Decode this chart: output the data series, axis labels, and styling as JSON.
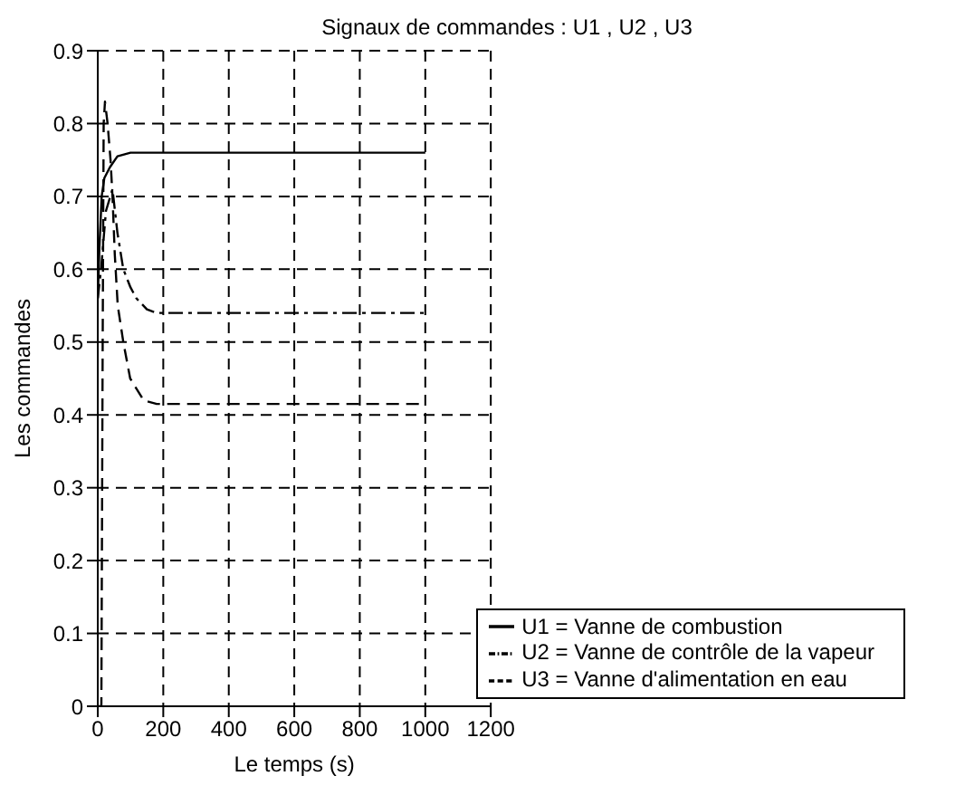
{
  "chart_data": {
    "type": "line",
    "title": "Signaux de commandes  : U1 , U2 , U3",
    "xlabel": "Le temps (s)",
    "ylabel": "Les commandes",
    "xlim": [
      0,
      1200
    ],
    "xticks": [
      0,
      200,
      400,
      600,
      800,
      1000,
      1200
    ],
    "ylim": [
      0,
      0.9
    ],
    "yticks": [
      0,
      0.1,
      0.2,
      0.3,
      0.4,
      0.5,
      0.6,
      0.7,
      0.8,
      0.9
    ],
    "grid": true,
    "legend": "bottom right",
    "series": [
      {
        "name": "U1 = Vanne  de combustion",
        "color": "#000000",
        "line_style": "solid",
        "x": [
          0,
          5,
          12,
          20,
          37,
          60,
          100,
          200,
          1000
        ],
        "values": [
          0.56,
          0.63,
          0.7,
          0.725,
          0.74,
          0.755,
          0.76,
          0.76,
          0.76
        ]
      },
      {
        "name": "U2 = Vanne de contrôle de la vapeur",
        "color": "#000000",
        "line_style": "dashdot",
        "x": [
          0,
          10,
          25,
          45,
          60,
          78,
          100,
          118,
          150,
          180,
          1000
        ],
        "values": [
          0.56,
          0.6,
          0.68,
          0.71,
          0.65,
          0.6,
          0.575,
          0.56,
          0.545,
          0.54,
          0.54
        ]
      },
      {
        "name": "U3 = Vanne d'alimentation en eau",
        "color": "#000000",
        "line_style": "dashed",
        "x": [
          0,
          11,
          15,
          18,
          22,
          30,
          39,
          45,
          52,
          61,
          78,
          99,
          140,
          180,
          1000
        ],
        "values": [
          0,
          0,
          0.5,
          0.8,
          0.83,
          0.8,
          0.75,
          0.7,
          0.62,
          0.55,
          0.5,
          0.45,
          0.42,
          0.415,
          0.415
        ]
      }
    ]
  }
}
